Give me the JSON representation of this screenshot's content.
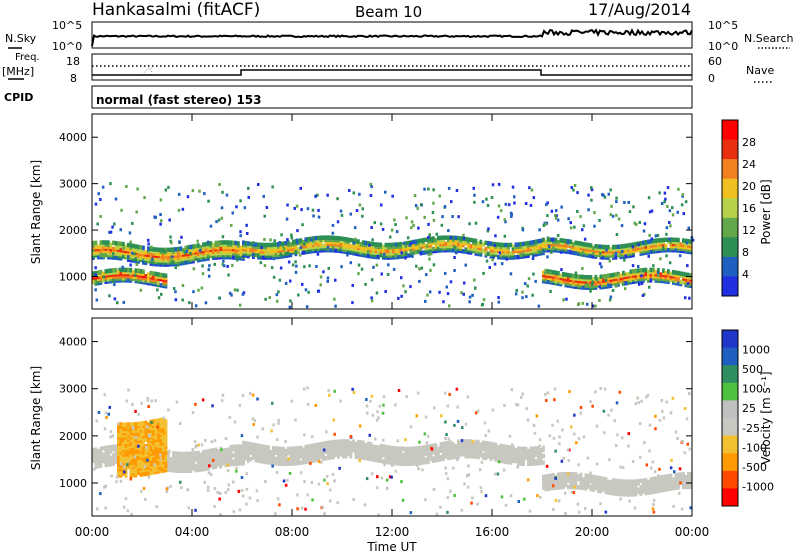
{
  "header": {
    "title": "Hankasalmi (fitACF)",
    "beam": "Beam 10",
    "date": "17/Aug/2014"
  },
  "top_panels": {
    "nsky_label": "N.Sky",
    "nsky_ticks": [
      "10^5",
      "10^0"
    ],
    "nsearch_label": "N.Search",
    "nsearch_ticks": [
      "10^5",
      "10^0"
    ],
    "freq_label": "Freq.",
    "freq_unit": "[MHz]",
    "freq_ticks": [
      "18",
      "8"
    ],
    "nave_label": "Nave",
    "nave_ticks": [
      "60",
      "0"
    ],
    "cpid_label": "CPID",
    "cpid_text": "normal (fast stereo) 153"
  },
  "colors": {
    "power_scale": [
      "#2030e0",
      "#1f5fc0",
      "#2e8f55",
      "#62a84a",
      "#b5d24a",
      "#f0c020",
      "#f08020",
      "#e83010",
      "#ff0000"
    ],
    "velocity_scale": [
      "#ff0000",
      "#ff4a00",
      "#ff9a00",
      "#f2c030",
      "#c8c8c0",
      "#c0c0c0",
      "#50c040",
      "#2f8f60",
      "#1f5fc0",
      "#1f36c8"
    ],
    "grey": "#c8c8c0"
  },
  "chart_data": [
    {
      "type": "heatmap",
      "title": "",
      "xlabel": "",
      "ylabel": "Slant Range [km]",
      "ylim": [
        300,
        4500
      ],
      "xlim": [
        0,
        24
      ],
      "y_ticks": [
        "1000",
        "2000",
        "3000",
        "4000"
      ],
      "colorbar": {
        "label": "Power [dB]",
        "ticks": [
          "4",
          "8",
          "12",
          "16",
          "20",
          "24",
          "28"
        ],
        "range": [
          0,
          30
        ]
      },
      "bands": [
        {
          "t": [
            0,
            3
          ],
          "range_km": [
            800,
            1050
          ],
          "power_db": 29
        },
        {
          "t": [
            0,
            6
          ],
          "range_km": [
            1300,
            1650
          ],
          "power_db": 26
        },
        {
          "t": [
            6,
            18
          ],
          "range_km": [
            1450,
            1750
          ],
          "power_db": 24
        },
        {
          "t": [
            18,
            24
          ],
          "range_km": [
            1450,
            1700
          ],
          "power_db": 25
        },
        {
          "t": [
            18,
            24
          ],
          "range_km": [
            800,
            1050
          ],
          "power_db": 28
        }
      ]
    },
    {
      "type": "heatmap",
      "title": "",
      "xlabel": "Time UT",
      "ylabel": "Slant Range [km]",
      "ylim": [
        300,
        4500
      ],
      "xlim": [
        0,
        24
      ],
      "x_ticks": [
        "00:00",
        "04:00",
        "08:00",
        "12:00",
        "16:00",
        "20:00",
        "00:00"
      ],
      "y_ticks": [
        "1000",
        "2000",
        "3000",
        "4000"
      ],
      "colorbar": {
        "label": "Velocity [m s⁻¹]",
        "ticks": [
          "1000",
          "500",
          "100",
          "25",
          "-25",
          "-100",
          "-500",
          "-1000"
        ]
      },
      "bands": [
        {
          "t": [
            0,
            6
          ],
          "range_km": [
            1300,
            1700
          ],
          "velocity": 0
        },
        {
          "t": [
            6,
            18
          ],
          "range_km": [
            1450,
            1800
          ],
          "velocity": 0
        },
        {
          "t": [
            18,
            24
          ],
          "range_km": [
            800,
            1100
          ],
          "velocity": 0
        },
        {
          "t": [
            1,
            3
          ],
          "range_km": [
            1200,
            2300
          ],
          "velocity": -300
        }
      ]
    }
  ]
}
